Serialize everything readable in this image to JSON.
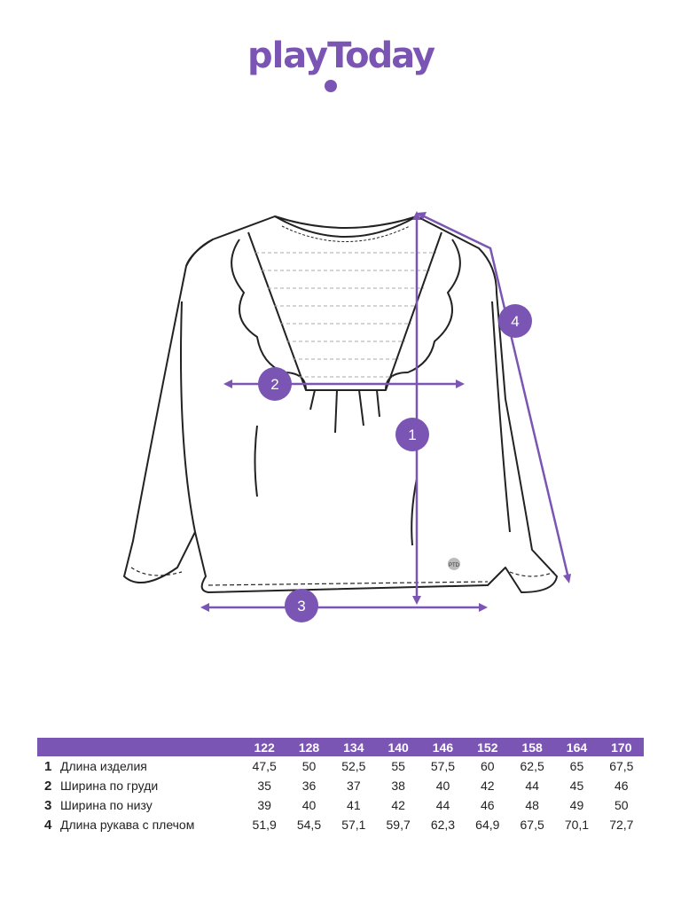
{
  "brand": {
    "logo_text": "playToday",
    "color": "#7b55b3"
  },
  "markers": [
    {
      "id": "1",
      "meaning": "Длина изделия"
    },
    {
      "id": "2",
      "meaning": "Ширина по груди"
    },
    {
      "id": "3",
      "meaning": "Ширина по низу"
    },
    {
      "id": "4",
      "meaning": "Длина рукава с плечом"
    }
  ],
  "garment_tag": "PTD",
  "size_table": {
    "sizes": [
      "122",
      "128",
      "134",
      "140",
      "146",
      "152",
      "158",
      "164",
      "170"
    ],
    "rows": [
      {
        "num": "1",
        "label": "Длина изделия",
        "values": [
          "47,5",
          "50",
          "52,5",
          "55",
          "57,5",
          "60",
          "62,5",
          "65",
          "67,5"
        ]
      },
      {
        "num": "2",
        "label": "Ширина по груди",
        "values": [
          "35",
          "36",
          "37",
          "38",
          "40",
          "42",
          "44",
          "45",
          "46"
        ]
      },
      {
        "num": "3",
        "label": "Ширина по низу",
        "values": [
          "39",
          "40",
          "41",
          "42",
          "44",
          "46",
          "48",
          "49",
          "50"
        ]
      },
      {
        "num": "4",
        "label": "Длина рукава с плечом",
        "values": [
          "51,9",
          "54,5",
          "57,1",
          "59,7",
          "62,3",
          "64,9",
          "67,5",
          "70,1",
          "72,7"
        ]
      }
    ]
  }
}
